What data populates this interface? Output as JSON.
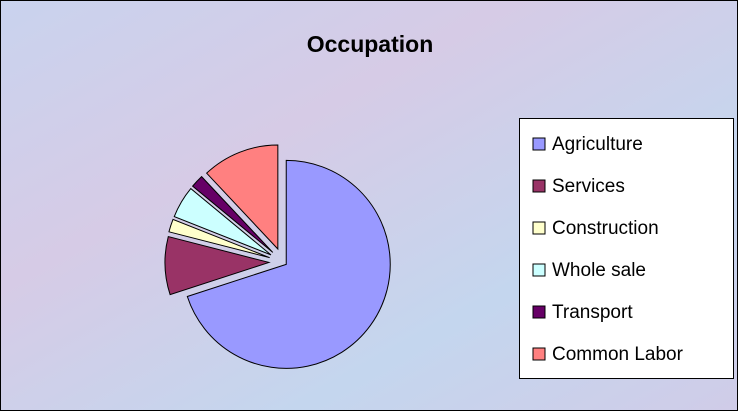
{
  "chart_data": {
    "type": "pie",
    "title": "Occupation",
    "categories": [
      "Agriculture",
      "Services",
      "Construction",
      "Whole sale",
      "Transport",
      "Common Labor"
    ],
    "values": [
      70,
      9,
      2,
      5,
      2,
      12
    ],
    "colors": [
      "#9999ff",
      "#993366",
      "#ffffcc",
      "#ccffff",
      "#660066",
      "#ff8080"
    ],
    "legend": "right"
  }
}
